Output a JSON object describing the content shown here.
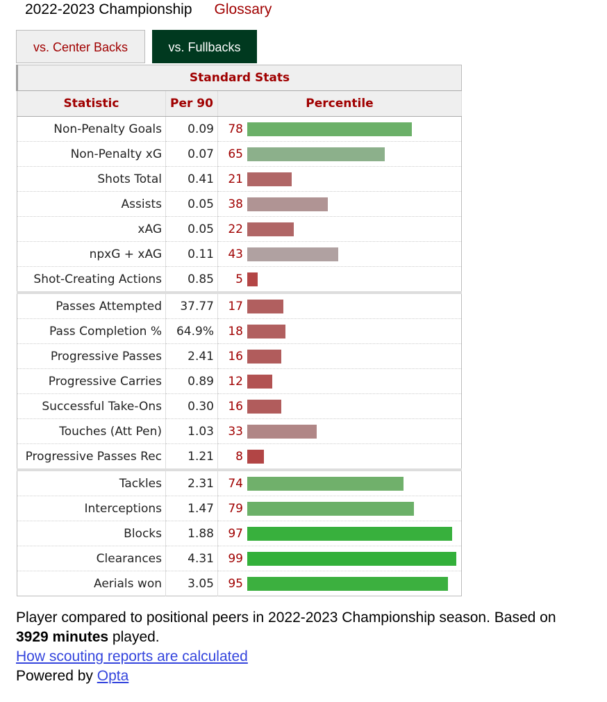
{
  "header": {
    "season_label": "2022-2023 Championship",
    "glossary_link": "Glossary"
  },
  "tabs": [
    {
      "label": "vs. Center Backs",
      "active": false
    },
    {
      "label": "vs. Fullbacks",
      "active": true
    }
  ],
  "table": {
    "title": "Standard Stats",
    "columns": [
      "Statistic",
      "Per 90",
      "Percentile"
    ],
    "rows": [
      {
        "stat": "Non-Penalty Goals",
        "per90": "0.09",
        "percentile": 78,
        "color": "#6bb068"
      },
      {
        "stat": "Non-Penalty xG",
        "per90": "0.07",
        "percentile": 65,
        "color": "#8cb08b"
      },
      {
        "stat": "Shots Total",
        "per90": "0.41",
        "percentile": 21,
        "color": "#b06666"
      },
      {
        "stat": "Assists",
        "per90": "0.05",
        "percentile": 38,
        "color": "#b09494"
      },
      {
        "stat": "xAG",
        "per90": "0.05",
        "percentile": 22,
        "color": "#b06666"
      },
      {
        "stat": "npxG + xAG",
        "per90": "0.11",
        "percentile": 43,
        "color": "#b0a1a1"
      },
      {
        "stat": "Shot-Creating Actions",
        "per90": "0.85",
        "percentile": 5,
        "color": "#b34545"
      },
      {
        "stat": "Passes Attempted",
        "per90": "37.77",
        "percentile": 17,
        "color": "#b15f5f",
        "group_start": true
      },
      {
        "stat": "Pass Completion %",
        "per90": "64.9%",
        "percentile": 18,
        "color": "#b15f5f"
      },
      {
        "stat": "Progressive Passes",
        "per90": "2.41",
        "percentile": 16,
        "color": "#b15c5c"
      },
      {
        "stat": "Progressive Carries",
        "per90": "0.89",
        "percentile": 12,
        "color": "#b25252"
      },
      {
        "stat": "Successful Take-Ons",
        "per90": "0.30",
        "percentile": 16,
        "color": "#b15c5c"
      },
      {
        "stat": "Touches (Att Pen)",
        "per90": "1.03",
        "percentile": 33,
        "color": "#b08686"
      },
      {
        "stat": "Progressive Passes Rec",
        "per90": "1.21",
        "percentile": 8,
        "color": "#b24545"
      },
      {
        "stat": "Tackles",
        "per90": "2.31",
        "percentile": 74,
        "color": "#70b06b",
        "group_start": true
      },
      {
        "stat": "Interceptions",
        "per90": "1.47",
        "percentile": 79,
        "color": "#6bb068"
      },
      {
        "stat": "Blocks",
        "per90": "1.88",
        "percentile": 97,
        "color": "#38b03d"
      },
      {
        "stat": "Clearances",
        "per90": "4.31",
        "percentile": 99,
        "color": "#33b03a"
      },
      {
        "stat": "Aerials won",
        "per90": "3.05",
        "percentile": 95,
        "color": "#3cb03f"
      }
    ]
  },
  "footer": {
    "line1": "Player compared to positional peers in 2022-2023 Championship season. Based on",
    "minutes": "3929 minutes",
    "line1_end": "played.",
    "link": "How scouting reports are calculated",
    "powered_by": "Powered by",
    "opta_link": "Opta"
  }
}
